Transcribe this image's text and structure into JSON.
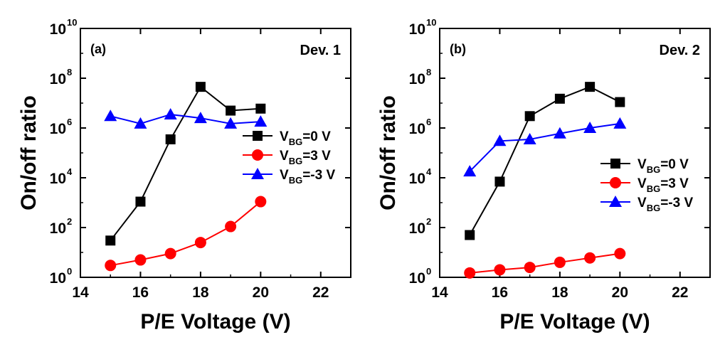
{
  "chart_data": [
    {
      "type": "line",
      "panel_label": "(a)",
      "device_label": "Dev. 1",
      "xlabel": "P/E Voltage (V)",
      "ylabel": "On/off ratio",
      "xlim": [
        14,
        23
      ],
      "xticks": [
        14,
        16,
        18,
        20,
        22
      ],
      "ylim_log10": [
        0,
        10
      ],
      "yscale": "log",
      "yticks_exponents": [
        0,
        2,
        4,
        6,
        8,
        10
      ],
      "legend": "right",
      "series": [
        {
          "name_main": "V",
          "name_sub": "BG",
          "name_rest": "=0 V",
          "color": "#000000",
          "marker": "square",
          "x": [
            15,
            16,
            17,
            18,
            19,
            20
          ],
          "y": [
            30,
            1100,
            350000,
            45000000,
            5000000,
            6000000
          ]
        },
        {
          "name_main": "V",
          "name_sub": "BG",
          "name_rest": "=3 V",
          "color": "#ff0000",
          "marker": "circle",
          "x": [
            15,
            16,
            17,
            18,
            19,
            20
          ],
          "y": [
            3,
            5,
            9,
            25,
            110,
            1100
          ]
        },
        {
          "name_main": "V",
          "name_sub": "BG",
          "name_rest": "=-3 V",
          "color": "#0000ff",
          "marker": "triangle",
          "x": [
            15,
            16,
            17,
            18,
            19,
            20
          ],
          "y": [
            3000000,
            1500000,
            3500000,
            2500000,
            1500000,
            1800000
          ]
        }
      ]
    },
    {
      "type": "line",
      "panel_label": "(b)",
      "device_label": "Dev. 2",
      "xlabel": "P/E Voltage (V)",
      "ylabel": "On/off ratio",
      "xlim": [
        14,
        23
      ],
      "xticks": [
        14,
        16,
        18,
        20,
        22
      ],
      "ylim_log10": [
        0,
        10
      ],
      "yscale": "log",
      "yticks_exponents": [
        0,
        2,
        4,
        6,
        8,
        10
      ],
      "legend": "right",
      "series": [
        {
          "name_main": "V",
          "name_sub": "BG",
          "name_rest": "=0 V",
          "color": "#000000",
          "marker": "square",
          "x": [
            15,
            16,
            17,
            18,
            19,
            20
          ],
          "y": [
            50,
            7000,
            3000000,
            15000000,
            45000000,
            11000000
          ]
        },
        {
          "name_main": "V",
          "name_sub": "BG",
          "name_rest": "=3 V",
          "color": "#ff0000",
          "marker": "circle",
          "x": [
            15,
            16,
            17,
            18,
            19,
            20
          ],
          "y": [
            1.5,
            2,
            2.5,
            4,
            6,
            9
          ]
        },
        {
          "name_main": "V",
          "name_sub": "BG",
          "name_rest": "=-3 V",
          "color": "#0000ff",
          "marker": "triangle",
          "x": [
            15,
            16,
            17,
            18,
            19,
            20
          ],
          "y": [
            18000,
            300000,
            350000,
            600000,
            1000000,
            1500000
          ]
        }
      ]
    }
  ]
}
